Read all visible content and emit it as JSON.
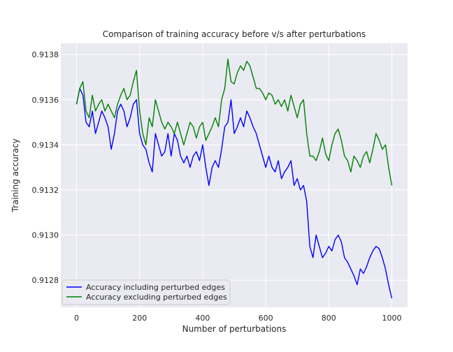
{
  "chart_data": {
    "type": "line",
    "title": "Comparison of training accuracy before v/s after perturbations",
    "xlabel": "Number of perturbations",
    "ylabel": "Training accuracy",
    "xlim": [
      -50,
      1050
    ],
    "ylim": [
      0.91268,
      0.91385
    ],
    "x_ticks": [
      0,
      200,
      400,
      600,
      800,
      1000
    ],
    "y_ticks": [
      0.9128,
      0.913,
      0.9132,
      0.9134,
      0.9136,
      0.9138
    ],
    "grid": true,
    "legend_position": "lower-left",
    "series": [
      {
        "name": "Accuracy including perturbed edges",
        "color": "#0000ff",
        "points": [
          [
            0,
            0.91358
          ],
          [
            10,
            0.91365
          ],
          [
            20,
            0.91362
          ],
          [
            30,
            0.9135
          ],
          [
            40,
            0.91348
          ],
          [
            50,
            0.91355
          ],
          [
            60,
            0.91345
          ],
          [
            70,
            0.9135
          ],
          [
            80,
            0.91355
          ],
          [
            90,
            0.91352
          ],
          [
            100,
            0.91348
          ],
          [
            110,
            0.91338
          ],
          [
            120,
            0.91345
          ],
          [
            130,
            0.91355
          ],
          [
            140,
            0.91358
          ],
          [
            150,
            0.91355
          ],
          [
            160,
            0.91348
          ],
          [
            170,
            0.91352
          ],
          [
            180,
            0.91358
          ],
          [
            190,
            0.9136
          ],
          [
            200,
            0.91345
          ],
          [
            210,
            0.9134
          ],
          [
            220,
            0.91338
          ],
          [
            230,
            0.91332
          ],
          [
            240,
            0.91328
          ],
          [
            250,
            0.91345
          ],
          [
            260,
            0.9134
          ],
          [
            270,
            0.91335
          ],
          [
            280,
            0.91337
          ],
          [
            290,
            0.91345
          ],
          [
            300,
            0.91335
          ],
          [
            310,
            0.91345
          ],
          [
            320,
            0.91342
          ],
          [
            330,
            0.91335
          ],
          [
            340,
            0.91332
          ],
          [
            350,
            0.91335
          ],
          [
            360,
            0.9133
          ],
          [
            370,
            0.91335
          ],
          [
            380,
            0.91337
          ],
          [
            390,
            0.91333
          ],
          [
            400,
            0.9134
          ],
          [
            410,
            0.9133
          ],
          [
            420,
            0.91322
          ],
          [
            430,
            0.9133
          ],
          [
            440,
            0.91333
          ],
          [
            450,
            0.9133
          ],
          [
            460,
            0.91338
          ],
          [
            470,
            0.91348
          ],
          [
            480,
            0.9135
          ],
          [
            490,
            0.9136
          ],
          [
            500,
            0.91345
          ],
          [
            510,
            0.91348
          ],
          [
            520,
            0.91352
          ],
          [
            530,
            0.91348
          ],
          [
            540,
            0.91355
          ],
          [
            550,
            0.91352
          ],
          [
            560,
            0.91348
          ],
          [
            570,
            0.91345
          ],
          [
            580,
            0.9134
          ],
          [
            590,
            0.91335
          ],
          [
            600,
            0.9133
          ],
          [
            610,
            0.91335
          ],
          [
            620,
            0.9133
          ],
          [
            630,
            0.91328
          ],
          [
            640,
            0.91333
          ],
          [
            650,
            0.91325
          ],
          [
            660,
            0.91328
          ],
          [
            670,
            0.9133
          ],
          [
            680,
            0.91333
          ],
          [
            690,
            0.91322
          ],
          [
            700,
            0.91325
          ],
          [
            710,
            0.9132
          ],
          [
            720,
            0.91322
          ],
          [
            730,
            0.91315
          ],
          [
            740,
            0.91295
          ],
          [
            750,
            0.9129
          ],
          [
            760,
            0.913
          ],
          [
            770,
            0.91295
          ],
          [
            780,
            0.9129
          ],
          [
            790,
            0.91292
          ],
          [
            800,
            0.91295
          ],
          [
            810,
            0.91293
          ],
          [
            820,
            0.91298
          ],
          [
            830,
            0.913
          ],
          [
            840,
            0.91297
          ],
          [
            850,
            0.9129
          ],
          [
            860,
            0.91288
          ],
          [
            870,
            0.91285
          ],
          [
            880,
            0.91282
          ],
          [
            890,
            0.91278
          ],
          [
            900,
            0.91285
          ],
          [
            910,
            0.91283
          ],
          [
            920,
            0.91286
          ],
          [
            930,
            0.9129
          ],
          [
            940,
            0.91293
          ],
          [
            950,
            0.91295
          ],
          [
            960,
            0.91294
          ],
          [
            970,
            0.9129
          ],
          [
            980,
            0.91285
          ],
          [
            990,
            0.91278
          ],
          [
            1000,
            0.91272
          ]
        ]
      },
      {
        "name": "Accuracy excluding perturbed edges",
        "color": "#008000",
        "points": [
          [
            0,
            0.91358
          ],
          [
            10,
            0.91365
          ],
          [
            20,
            0.91368
          ],
          [
            30,
            0.91355
          ],
          [
            40,
            0.91352
          ],
          [
            50,
            0.91362
          ],
          [
            60,
            0.91355
          ],
          [
            70,
            0.91358
          ],
          [
            80,
            0.9136
          ],
          [
            90,
            0.91355
          ],
          [
            100,
            0.91358
          ],
          [
            110,
            0.91355
          ],
          [
            120,
            0.91352
          ],
          [
            130,
            0.91358
          ],
          [
            140,
            0.91362
          ],
          [
            150,
            0.91365
          ],
          [
            160,
            0.9136
          ],
          [
            170,
            0.91362
          ],
          [
            180,
            0.91368
          ],
          [
            190,
            0.91373
          ],
          [
            200,
            0.91355
          ],
          [
            210,
            0.91345
          ],
          [
            220,
            0.9134
          ],
          [
            230,
            0.91352
          ],
          [
            240,
            0.91348
          ],
          [
            250,
            0.9136
          ],
          [
            260,
            0.91355
          ],
          [
            270,
            0.9135
          ],
          [
            280,
            0.91347
          ],
          [
            290,
            0.9135
          ],
          [
            300,
            0.91348
          ],
          [
            310,
            0.91345
          ],
          [
            320,
            0.9135
          ],
          [
            330,
            0.91345
          ],
          [
            340,
            0.9134
          ],
          [
            350,
            0.91345
          ],
          [
            360,
            0.9135
          ],
          [
            370,
            0.91348
          ],
          [
            380,
            0.91343
          ],
          [
            390,
            0.91348
          ],
          [
            400,
            0.9135
          ],
          [
            410,
            0.91342
          ],
          [
            420,
            0.91345
          ],
          [
            430,
            0.91348
          ],
          [
            440,
            0.91352
          ],
          [
            450,
            0.91348
          ],
          [
            460,
            0.9136
          ],
          [
            470,
            0.91365
          ],
          [
            480,
            0.91378
          ],
          [
            490,
            0.91368
          ],
          [
            500,
            0.91367
          ],
          [
            510,
            0.91372
          ],
          [
            520,
            0.91375
          ],
          [
            530,
            0.91373
          ],
          [
            540,
            0.91377
          ],
          [
            550,
            0.91375
          ],
          [
            560,
            0.9137
          ],
          [
            570,
            0.91365
          ],
          [
            580,
            0.91365
          ],
          [
            590,
            0.91363
          ],
          [
            600,
            0.9136
          ],
          [
            610,
            0.91363
          ],
          [
            620,
            0.91362
          ],
          [
            630,
            0.91358
          ],
          [
            640,
            0.9136
          ],
          [
            650,
            0.91357
          ],
          [
            660,
            0.9136
          ],
          [
            670,
            0.91355
          ],
          [
            680,
            0.91362
          ],
          [
            690,
            0.91357
          ],
          [
            700,
            0.91352
          ],
          [
            710,
            0.91358
          ],
          [
            720,
            0.9136
          ],
          [
            730,
            0.91345
          ],
          [
            740,
            0.91335
          ],
          [
            750,
            0.91335
          ],
          [
            760,
            0.91333
          ],
          [
            770,
            0.91337
          ],
          [
            780,
            0.91343
          ],
          [
            790,
            0.91336
          ],
          [
            800,
            0.91333
          ],
          [
            810,
            0.9134
          ],
          [
            820,
            0.91345
          ],
          [
            830,
            0.91347
          ],
          [
            840,
            0.91342
          ],
          [
            850,
            0.91335
          ],
          [
            860,
            0.91333
          ],
          [
            870,
            0.91328
          ],
          [
            880,
            0.91335
          ],
          [
            890,
            0.91333
          ],
          [
            900,
            0.9133
          ],
          [
            910,
            0.91335
          ],
          [
            920,
            0.91337
          ],
          [
            930,
            0.91332
          ],
          [
            940,
            0.91338
          ],
          [
            950,
            0.91345
          ],
          [
            960,
            0.91342
          ],
          [
            970,
            0.91338
          ],
          [
            980,
            0.9134
          ],
          [
            990,
            0.9133
          ],
          [
            1000,
            0.91322
          ]
        ]
      }
    ]
  }
}
